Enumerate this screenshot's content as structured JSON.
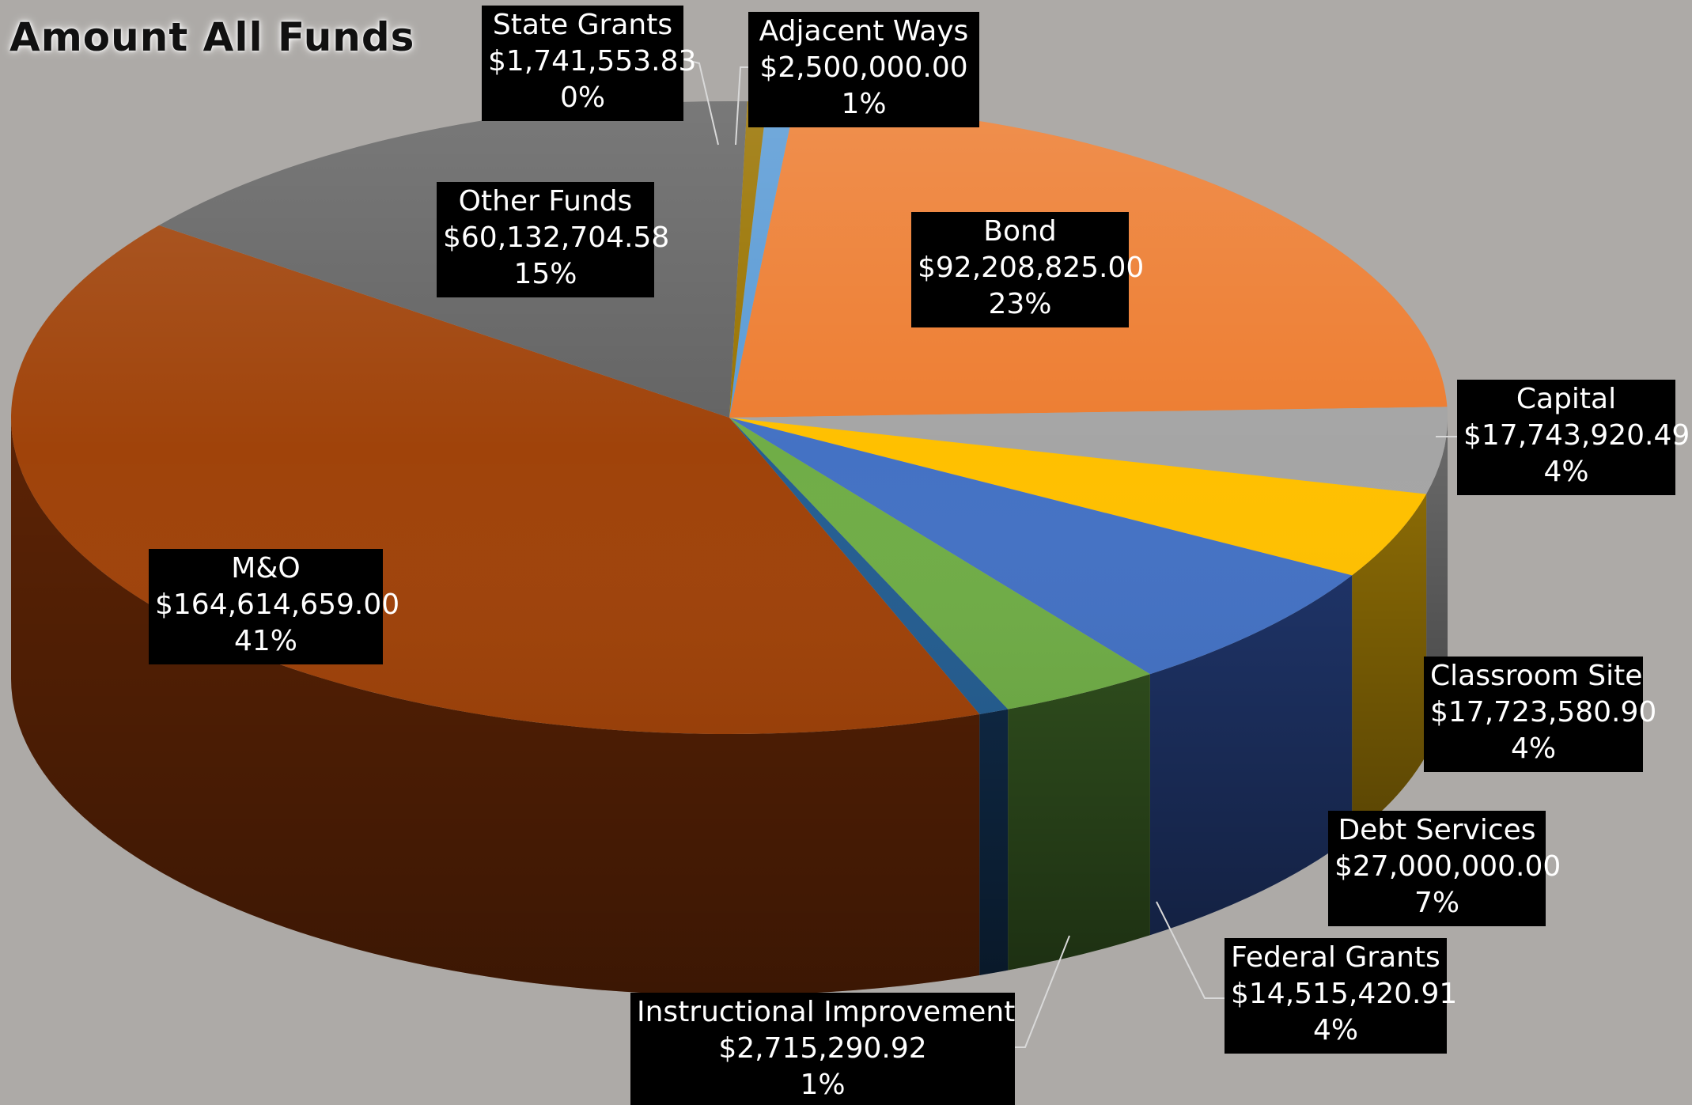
{
  "chart_data": {
    "type": "pie",
    "title": "Amount All Funds",
    "slices": [
      {
        "label": "Adjacent Ways",
        "value": 2500000.0,
        "value_text": "$2,500,000.00",
        "pct_text": "1%",
        "color": "#5b9bd5",
        "side_color": "#2f5f91"
      },
      {
        "label": "Bond",
        "value": 92208825.0,
        "value_text": "$92,208,825.00",
        "pct_text": "23%",
        "color": "#ed7d31",
        "side_color": "#8e4a1d"
      },
      {
        "label": "Capital",
        "value": 17743920.49,
        "value_text": "$17,743,920.49",
        "pct_text": "4%",
        "color": "#a5a5a5",
        "side_color": "#6b6b6b"
      },
      {
        "label": "Classroom Site",
        "value": 17723580.9,
        "value_text": "$17,723,580.90",
        "pct_text": "4%",
        "color": "#ffc000",
        "side_color": "#8a6a05"
      },
      {
        "label": "Debt Services",
        "value": 27000000.0,
        "value_text": "$27,000,000.00",
        "pct_text": "7%",
        "color": "#4472c4",
        "side_color": "#1e3366"
      },
      {
        "label": "Federal Grants",
        "value": 14515420.91,
        "value_text": "$14,515,420.91",
        "pct_text": "4%",
        "color": "#70ad47",
        "side_color": "#2d4a1c"
      },
      {
        "label": "Instructional Improvement",
        "value": 2715290.92,
        "value_text": "$2,715,290.92",
        "pct_text": "1%",
        "color": "#255e91",
        "side_color": "#0e2640"
      },
      {
        "label": "M&O",
        "value": 164614659.0,
        "value_text": "$164,614,659.00",
        "pct_text": "41%",
        "color": "#a0430a",
        "side_color": "#5c2305"
      },
      {
        "label": "Other Funds",
        "value": 60132704.58,
        "value_text": "$60,132,704.58",
        "pct_text": "15%",
        "color": "#636363",
        "side_color": "#333333"
      },
      {
        "label": "State Grants",
        "value": 1741553.83,
        "value_text": "$1,741,553.83",
        "pct_text": "0%",
        "color": "#997300",
        "side_color": "#5a4400"
      }
    ],
    "legend": "none",
    "style": "3d-exploded-labels"
  },
  "colors": {
    "background": "#adaaa7",
    "label_box": "#000000",
    "label_text": "#ffffff",
    "leader_line": "#d9d9d9"
  }
}
